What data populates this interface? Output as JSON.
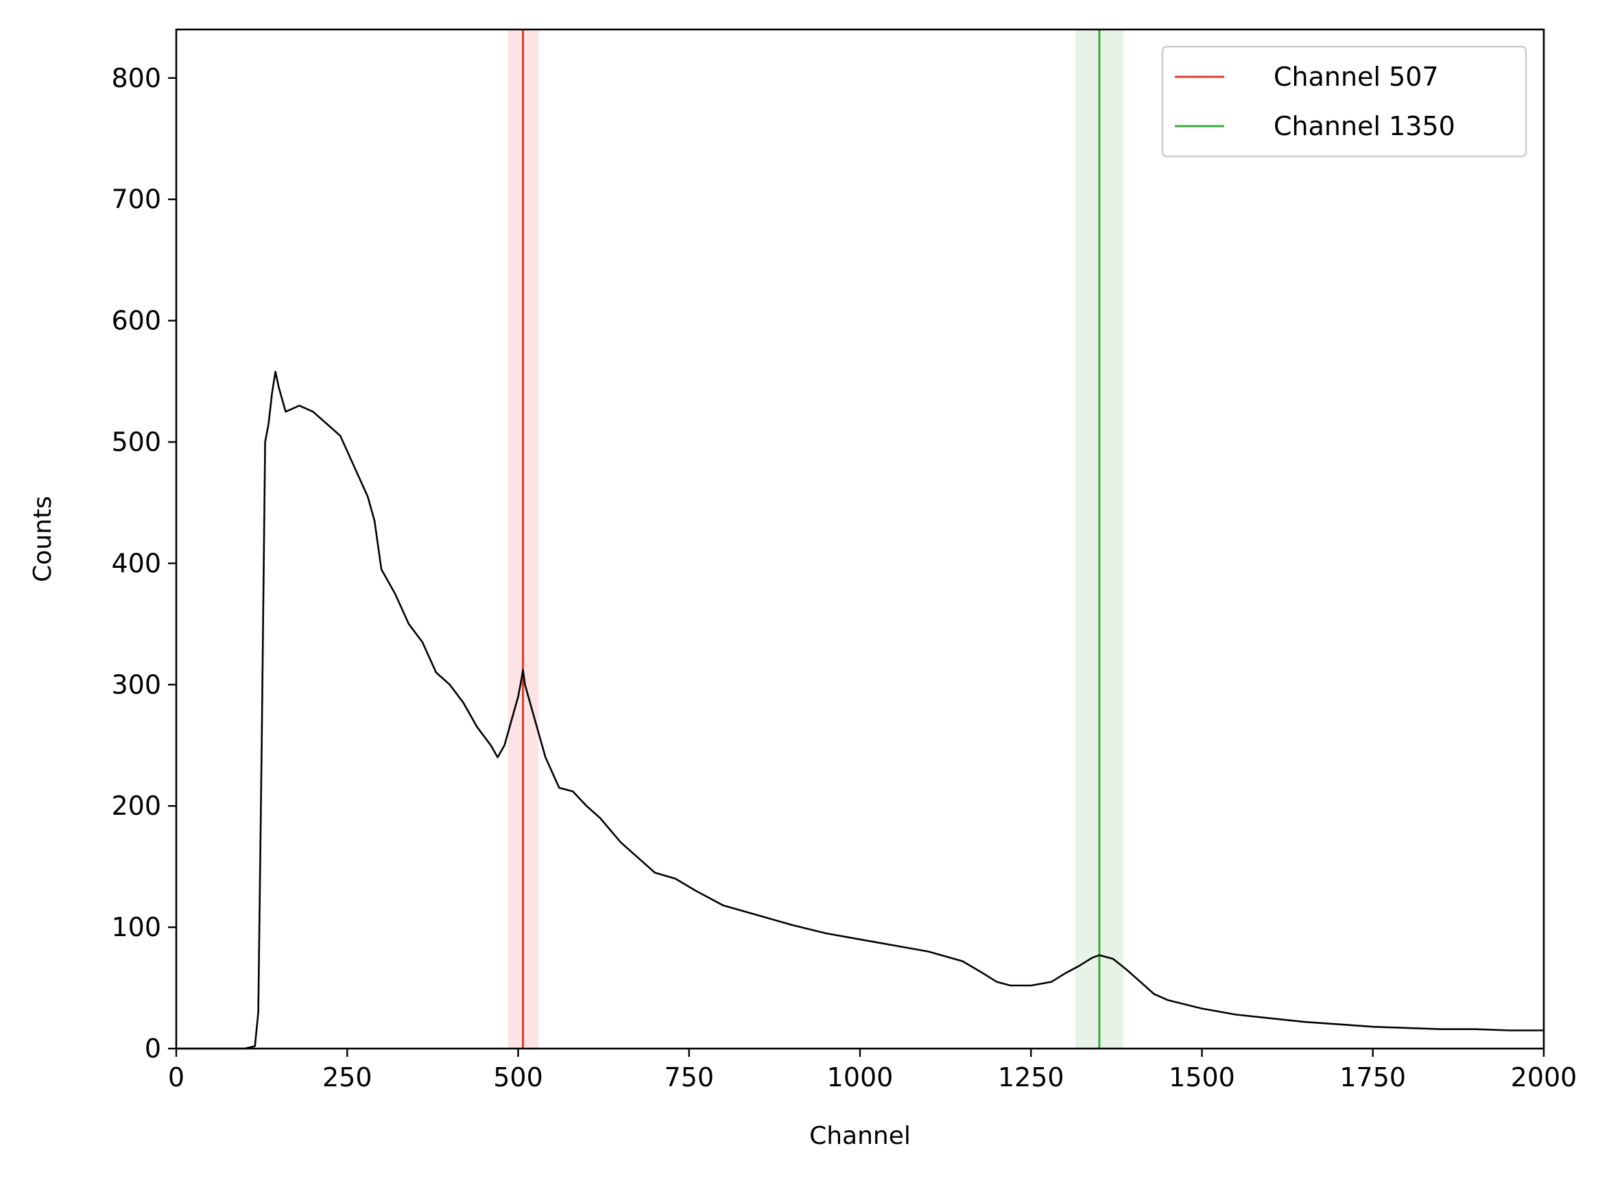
{
  "chart_data": {
    "type": "line",
    "title": "",
    "xlabel": "Channel",
    "ylabel": "Counts",
    "xlim": [
      0,
      2000
    ],
    "ylim": [
      0,
      840
    ],
    "x_ticks": [
      0,
      250,
      500,
      750,
      1000,
      1250,
      1500,
      1750,
      2000
    ],
    "y_ticks": [
      0,
      100,
      200,
      300,
      400,
      500,
      600,
      700,
      800
    ],
    "grid": false,
    "legend_position": "top-right",
    "series": [
      {
        "name": "",
        "color": "#000000",
        "points": [
          [
            0,
            0
          ],
          [
            100,
            0
          ],
          [
            115,
            2
          ],
          [
            120,
            30
          ],
          [
            125,
            250
          ],
          [
            130,
            500
          ],
          [
            135,
            515
          ],
          [
            140,
            540
          ],
          [
            145,
            558
          ],
          [
            150,
            545
          ],
          [
            160,
            525
          ],
          [
            180,
            530
          ],
          [
            200,
            525
          ],
          [
            220,
            515
          ],
          [
            240,
            505
          ],
          [
            260,
            480
          ],
          [
            280,
            455
          ],
          [
            290,
            435
          ],
          [
            300,
            395
          ],
          [
            320,
            375
          ],
          [
            340,
            350
          ],
          [
            360,
            335
          ],
          [
            380,
            310
          ],
          [
            400,
            300
          ],
          [
            420,
            285
          ],
          [
            440,
            265
          ],
          [
            460,
            250
          ],
          [
            470,
            240
          ],
          [
            480,
            250
          ],
          [
            490,
            270
          ],
          [
            500,
            290
          ],
          [
            505,
            305
          ],
          [
            507,
            312
          ],
          [
            510,
            300
          ],
          [
            520,
            280
          ],
          [
            540,
            240
          ],
          [
            560,
            215
          ],
          [
            580,
            212
          ],
          [
            600,
            200
          ],
          [
            620,
            190
          ],
          [
            650,
            170
          ],
          [
            680,
            155
          ],
          [
            700,
            145
          ],
          [
            730,
            140
          ],
          [
            760,
            130
          ],
          [
            800,
            118
          ],
          [
            850,
            110
          ],
          [
            900,
            102
          ],
          [
            950,
            95
          ],
          [
            1000,
            90
          ],
          [
            1050,
            85
          ],
          [
            1100,
            80
          ],
          [
            1150,
            72
          ],
          [
            1180,
            62
          ],
          [
            1200,
            55
          ],
          [
            1220,
            52
          ],
          [
            1250,
            52
          ],
          [
            1280,
            55
          ],
          [
            1300,
            62
          ],
          [
            1320,
            68
          ],
          [
            1340,
            75
          ],
          [
            1350,
            77
          ],
          [
            1370,
            74
          ],
          [
            1390,
            65
          ],
          [
            1410,
            55
          ],
          [
            1430,
            45
          ],
          [
            1450,
            40
          ],
          [
            1500,
            33
          ],
          [
            1550,
            28
          ],
          [
            1600,
            25
          ],
          [
            1650,
            22
          ],
          [
            1700,
            20
          ],
          [
            1750,
            18
          ],
          [
            1800,
            17
          ],
          [
            1850,
            16
          ],
          [
            1900,
            16
          ],
          [
            1950,
            15
          ],
          [
            2000,
            15
          ]
        ]
      }
    ],
    "markers": [
      {
        "name": "Channel 507",
        "x": 507,
        "band": [
          485,
          530
        ],
        "color": "#e8392b",
        "band_color": "#fce4e4"
      },
      {
        "name": "Channel 1350",
        "x": 1350,
        "band": [
          1315,
          1385
        ],
        "color": "#3aaa3a",
        "band_color": "#e8f3e8"
      }
    ]
  }
}
